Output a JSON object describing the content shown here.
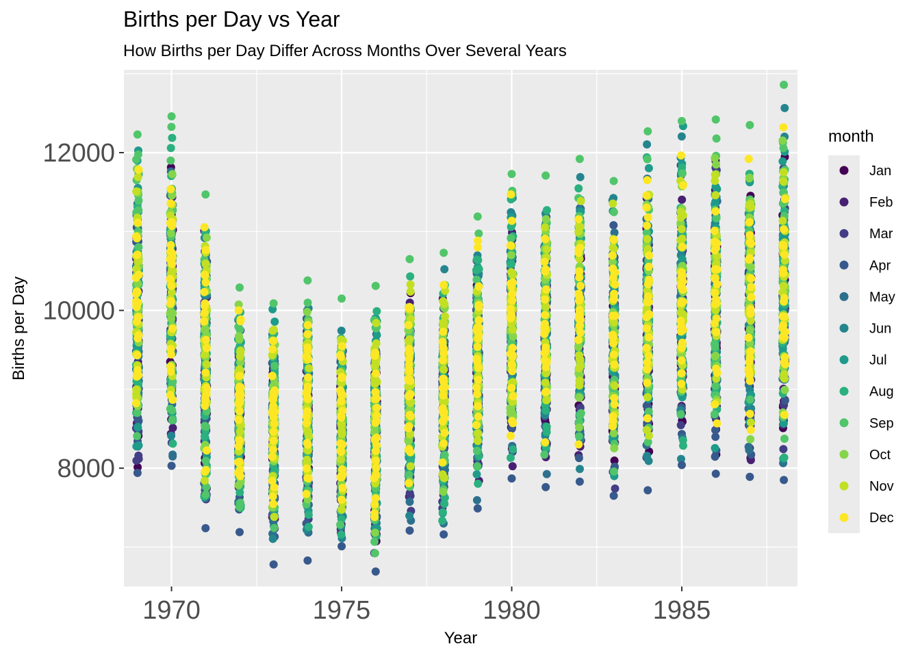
{
  "chart_data": {
    "type": "scatter",
    "title": "Births per Day vs Year",
    "subtitle": "How Births per Day Differ Across Months Over Several Years",
    "xlabel": "Year",
    "ylabel": "Births per Day",
    "xlim": [
      1968.6,
      1988.4
    ],
    "ylim": [
      6500,
      13050
    ],
    "x_ticks": [
      1970,
      1975,
      1980,
      1985
    ],
    "x_minor": [
      1972.5,
      1977.5,
      1982.5,
      1987.5
    ],
    "y_ticks": [
      8000,
      10000,
      12000
    ],
    "y_minor": [
      7000,
      9000,
      11000,
      13000
    ],
    "grid": true,
    "legend_position": "right",
    "legend_title": "month",
    "months": [
      "Jan",
      "Feb",
      "Mar",
      "Apr",
      "May",
      "Jun",
      "Jul",
      "Aug",
      "Sep",
      "Oct",
      "Nov",
      "Dec"
    ],
    "colors": [
      "#440154",
      "#482173",
      "#433E85",
      "#38598C",
      "#2D708E",
      "#25858E",
      "#1E9B8A",
      "#2BB07F",
      "#51C56A",
      "#85D54A",
      "#C2DF23",
      "#FDE725"
    ],
    "years": [
      1969,
      1970,
      1971,
      1972,
      1973,
      1974,
      1975,
      1976,
      1977,
      1978,
      1979,
      1980,
      1981,
      1982,
      1983,
      1984,
      1985,
      1986,
      1987,
      1988
    ],
    "year_min": [
      7940,
      8030,
      7240,
      7190,
      6780,
      6830,
      7010,
      6690,
      7210,
      7160,
      7490,
      7870,
      7760,
      7830,
      7650,
      7720,
      8040,
      7930,
      7890,
      7850
    ],
    "year_max": [
      12230,
      12460,
      11470,
      10290,
      10090,
      10380,
      10150,
      10310,
      10650,
      10730,
      11190,
      11730,
      11710,
      11920,
      11640,
      12270,
      12400,
      12420,
      12350,
      12860
    ]
  }
}
